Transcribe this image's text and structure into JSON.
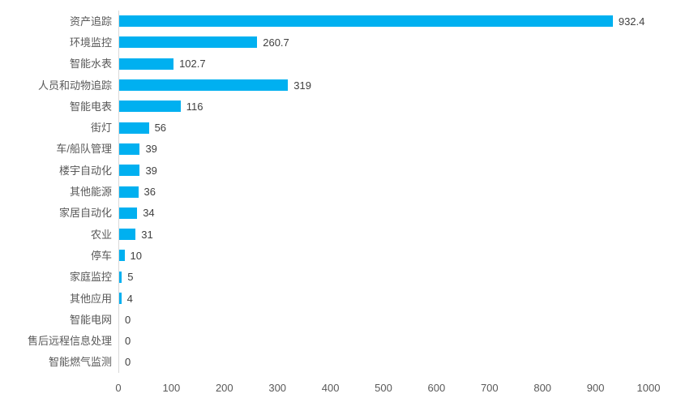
{
  "chart_data": {
    "type": "bar",
    "orientation": "horizontal",
    "title": "",
    "xlabel": "",
    "ylabel": "",
    "categories": [
      "资产追踪",
      "环境监控",
      "智能水表",
      "人员和动物追踪",
      "智能电表",
      "街灯",
      "车/船队管理",
      "楼宇自动化",
      "其他能源",
      "家居自动化",
      "农业",
      "停车",
      "家庭监控",
      "其他应用",
      "智能电网",
      "售后远程信息处理",
      "智能燃气监测"
    ],
    "values": [
      932.4,
      260.7,
      102.7,
      319,
      116,
      56,
      39,
      39,
      36,
      34,
      31,
      10,
      5,
      4,
      0,
      0,
      0
    ],
    "value_labels": [
      "932.4",
      "260.7",
      "102.7",
      "319",
      "116",
      "56",
      "39",
      "39",
      "36",
      "34",
      "31",
      "10",
      "5",
      "4",
      "0",
      "0",
      "0"
    ],
    "x_ticks": [
      "0",
      "100",
      "200",
      "300",
      "400",
      "500",
      "600",
      "700",
      "800",
      "900",
      "1000"
    ],
    "xlim": [
      0,
      1000
    ],
    "grid": false,
    "legend": false,
    "colors": {
      "bar": "#00B0F0",
      "axis_line": "#D9D9D9",
      "category_label": "#595959",
      "value_label": "#404040",
      "tick_label": "#595959",
      "background": "#FFFFFF"
    }
  }
}
